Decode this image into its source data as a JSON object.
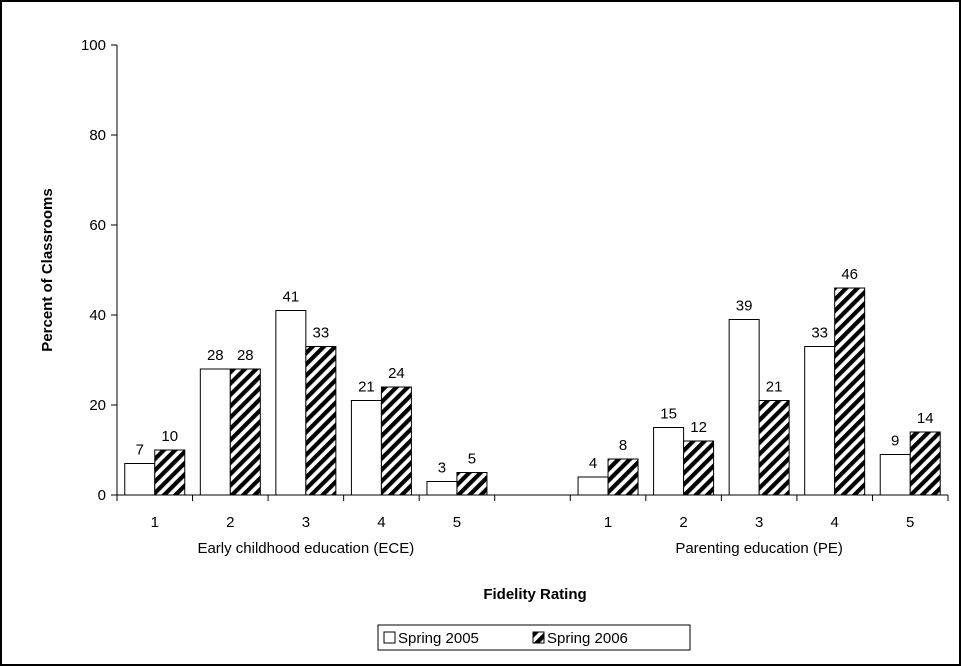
{
  "chart_data": {
    "type": "bar",
    "xlabel": "Fidelity Rating",
    "ylabel": "Percent of Classrooms",
    "ylim": [
      0,
      100
    ],
    "yticks": [
      0,
      20,
      40,
      60,
      80,
      100
    ],
    "grid": false,
    "legend_position": "bottom",
    "groups": [
      {
        "label": "Early childhood education (ECE)",
        "categories": [
          "1",
          "2",
          "3",
          "4",
          "5"
        ],
        "series": [
          {
            "name": "Spring 2005",
            "values": [
              7,
              28,
              41,
              21,
              3
            ]
          },
          {
            "name": "Spring 2006",
            "values": [
              10,
              28,
              33,
              24,
              5
            ]
          }
        ]
      },
      {
        "label": "Parenting education (PE)",
        "categories": [
          "1",
          "2",
          "3",
          "4",
          "5"
        ],
        "series": [
          {
            "name": "Spring 2005",
            "values": [
              4,
              15,
              39,
              33,
              9
            ]
          },
          {
            "name": "Spring 2006",
            "values": [
              8,
              12,
              21,
              46,
              14
            ]
          }
        ]
      }
    ],
    "legend": [
      "Spring 2005",
      "Spring 2006"
    ],
    "series_styles": [
      {
        "name": "Spring 2005",
        "fill": "#ffffff",
        "pattern": "none"
      },
      {
        "name": "Spring 2006",
        "fill": "#000000",
        "pattern": "diagonal-stripes"
      }
    ]
  }
}
